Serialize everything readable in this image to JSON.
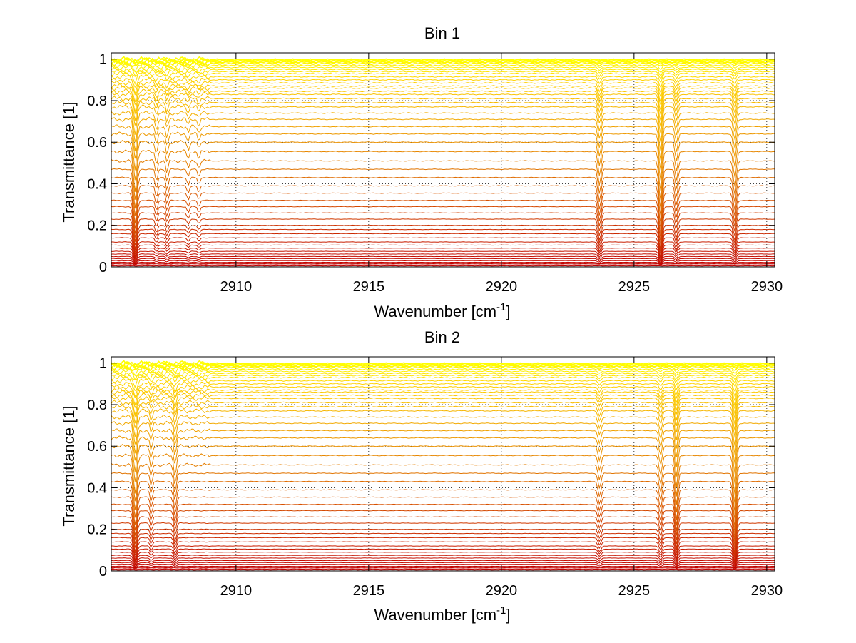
{
  "chart_data": [
    {
      "type": "line",
      "title": "Bin 1",
      "xlabel": "Wavenumber [cm",
      "xlabel_sup": "-1",
      "xlabel_end": "]",
      "ylabel": "Transmittance [1]",
      "xlim": [
        2905.3,
        2930.3
      ],
      "ylim": [
        0,
        1.03
      ],
      "x_ticks": [
        2910,
        2915,
        2920,
        2925,
        2930
      ],
      "x_tick_labels": [
        "2910",
        "2915",
        "2920",
        "2925",
        "2930"
      ],
      "y_ticks": [
        0,
        0.2,
        0.4,
        0.6,
        0.8,
        1
      ],
      "y_tick_labels": [
        "0",
        "0.2",
        "0.4",
        "0.6",
        "0.8",
        "1"
      ],
      "grid": true,
      "series_count": 52,
      "baseline_levels": [
        0.0,
        0.005,
        0.01,
        0.016,
        0.022,
        0.03,
        0.04,
        0.05,
        0.062,
        0.075,
        0.09,
        0.105,
        0.12,
        0.14,
        0.16,
        0.18,
        0.2,
        0.23,
        0.26,
        0.29,
        0.32,
        0.355,
        0.39,
        0.43,
        0.47,
        0.51,
        0.555,
        0.6,
        0.64,
        0.675,
        0.71,
        0.74,
        0.77,
        0.79,
        0.81,
        0.83,
        0.845,
        0.86,
        0.87,
        0.885,
        0.9,
        0.915,
        0.93,
        0.94,
        0.95,
        0.96,
        0.97,
        0.978,
        0.985,
        0.99,
        0.995,
        0.998
      ],
      "absorption_lines": [
        {
          "center": 2906.2,
          "depth": 0.16,
          "width": 0.09
        },
        {
          "center": 2907.0,
          "depth": 0.05,
          "width": 0.06
        },
        {
          "center": 2907.4,
          "depth": 0.05,
          "width": 0.06
        },
        {
          "center": 2908.2,
          "depth": 0.03,
          "width": 0.06
        },
        {
          "center": 2908.6,
          "depth": 0.03,
          "width": 0.06
        },
        {
          "center": 2923.7,
          "depth": 0.1,
          "width": 0.08
        },
        {
          "center": 2926.0,
          "depth": 0.17,
          "width": 0.08
        },
        {
          "center": 2926.6,
          "depth": 0.08,
          "width": 0.07
        },
        {
          "center": 2928.8,
          "depth": 0.11,
          "width": 0.08
        }
      ]
    },
    {
      "type": "line",
      "title": "Bin 2",
      "xlabel": "Wavenumber [cm",
      "xlabel_sup": "-1",
      "xlabel_end": "]",
      "ylabel": "Transmittance [1]",
      "xlim": [
        2905.3,
        2930.3
      ],
      "ylim": [
        0,
        1.03
      ],
      "x_ticks": [
        2910,
        2915,
        2920,
        2925,
        2930
      ],
      "x_tick_labels": [
        "2910",
        "2915",
        "2920",
        "2925",
        "2930"
      ],
      "y_ticks": [
        0,
        0.2,
        0.4,
        0.6,
        0.8,
        1
      ],
      "y_tick_labels": [
        "0",
        "0.2",
        "0.4",
        "0.6",
        "0.8",
        "1"
      ],
      "grid": true,
      "series_count": 52,
      "baseline_levels": [
        0.0,
        0.005,
        0.01,
        0.016,
        0.022,
        0.03,
        0.04,
        0.05,
        0.062,
        0.075,
        0.09,
        0.105,
        0.12,
        0.14,
        0.16,
        0.18,
        0.2,
        0.23,
        0.26,
        0.29,
        0.32,
        0.355,
        0.39,
        0.43,
        0.47,
        0.51,
        0.555,
        0.6,
        0.64,
        0.675,
        0.71,
        0.74,
        0.77,
        0.79,
        0.81,
        0.83,
        0.845,
        0.86,
        0.87,
        0.885,
        0.9,
        0.915,
        0.93,
        0.94,
        0.95,
        0.96,
        0.97,
        0.978,
        0.985,
        0.99,
        0.995,
        0.998
      ],
      "absorption_lines": [
        {
          "center": 2906.2,
          "depth": 0.15,
          "width": 0.09
        },
        {
          "center": 2906.8,
          "depth": 0.05,
          "width": 0.06
        },
        {
          "center": 2907.7,
          "depth": 0.08,
          "width": 0.07
        },
        {
          "center": 2923.7,
          "depth": 0.06,
          "width": 0.08
        },
        {
          "center": 2926.0,
          "depth": 0.08,
          "width": 0.08
        },
        {
          "center": 2926.6,
          "depth": 0.13,
          "width": 0.07
        },
        {
          "center": 2928.8,
          "depth": 0.17,
          "width": 0.08
        }
      ]
    }
  ],
  "colors": {
    "low": "#c00000",
    "mid": "#e07000",
    "high": "#ffd200",
    "top": "#ffff00",
    "grid": "#000000",
    "axis": "#000000"
  }
}
